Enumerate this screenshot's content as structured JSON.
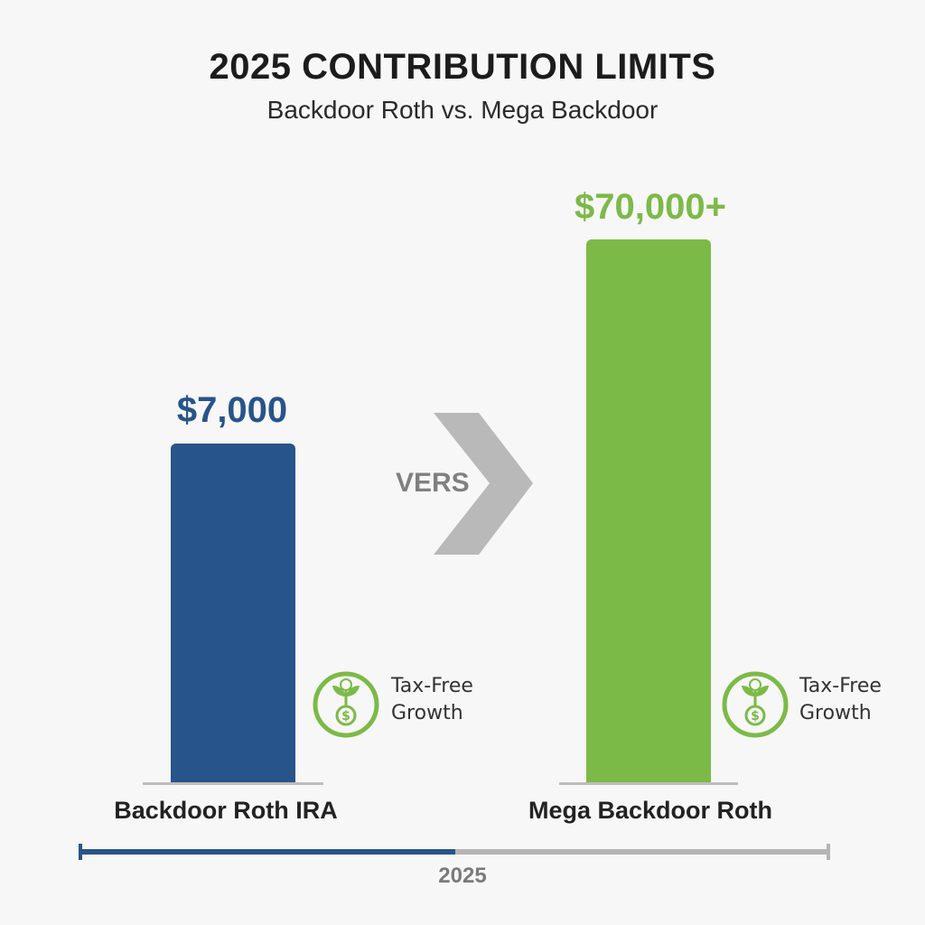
{
  "chart_data": {
    "type": "bar",
    "title": "2025 CONTRIBUTION LIMITS",
    "subtitle": "Backdoor Roth vs. Mega Backdoor",
    "categories": [
      "Backdoor Roth IRA",
      "Mega Backdoor Roth"
    ],
    "values": [
      7000,
      70000
    ],
    "value_labels": [
      "$7,000",
      "$70,000+"
    ],
    "colors": [
      "#27548a",
      "#7cba47"
    ],
    "note": "bar heights are not drawn to scale"
  },
  "comparison": {
    "label": "VERS"
  },
  "badges": [
    {
      "icon": "plant-dollar-icon",
      "line1": "Tax-Free",
      "line2": "Growth"
    },
    {
      "icon": "plant-dollar-icon",
      "line1": "Tax-Free",
      "line2": "Growth"
    }
  ],
  "timeline": {
    "year": "2025",
    "progress": 0.5,
    "filled_color": "#27548a",
    "track_color": "#b5b5b5"
  }
}
